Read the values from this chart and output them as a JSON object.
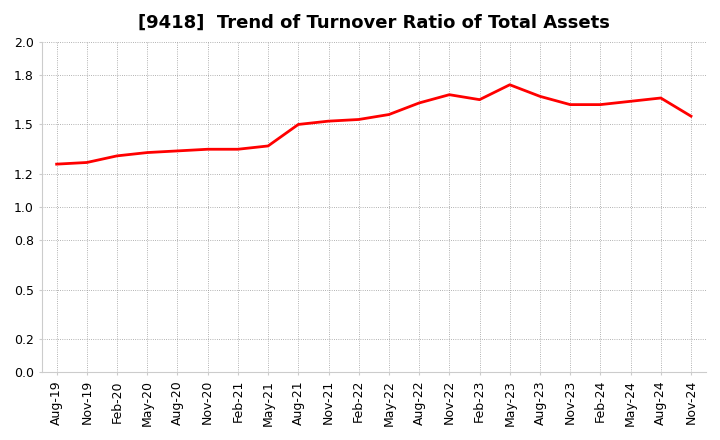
{
  "title": "[9418]  Trend of Turnover Ratio of Total Assets",
  "x_labels": [
    "Aug-19",
    "Nov-19",
    "Feb-20",
    "May-20",
    "Aug-20",
    "Nov-20",
    "Feb-21",
    "May-21",
    "Aug-21",
    "Nov-21",
    "Feb-22",
    "May-22",
    "Aug-22",
    "Nov-22",
    "Feb-23",
    "May-23",
    "Aug-23",
    "Nov-23",
    "Feb-24",
    "May-24",
    "Aug-24",
    "Nov-24"
  ],
  "y_values": [
    1.26,
    1.27,
    1.31,
    1.33,
    1.34,
    1.35,
    1.35,
    1.37,
    1.5,
    1.52,
    1.53,
    1.56,
    1.63,
    1.68,
    1.65,
    1.74,
    1.67,
    1.62,
    1.62,
    1.64,
    1.66,
    1.55
  ],
  "ylim": [
    0.0,
    2.0
  ],
  "yticks": [
    0.0,
    0.2,
    0.5,
    0.8,
    1.0,
    1.2,
    1.5,
    1.8,
    2.0
  ],
  "ytick_labels": [
    "0.0",
    "0.2",
    "0.5",
    "0.8",
    "1.0",
    "1.2",
    "1.5",
    "1.8",
    "2.0"
  ],
  "line_color": "#ff0000",
  "background_color": "#ffffff",
  "grid_color": "#999999",
  "title_fontsize": 13,
  "tick_fontsize": 9,
  "line_width": 2.0
}
